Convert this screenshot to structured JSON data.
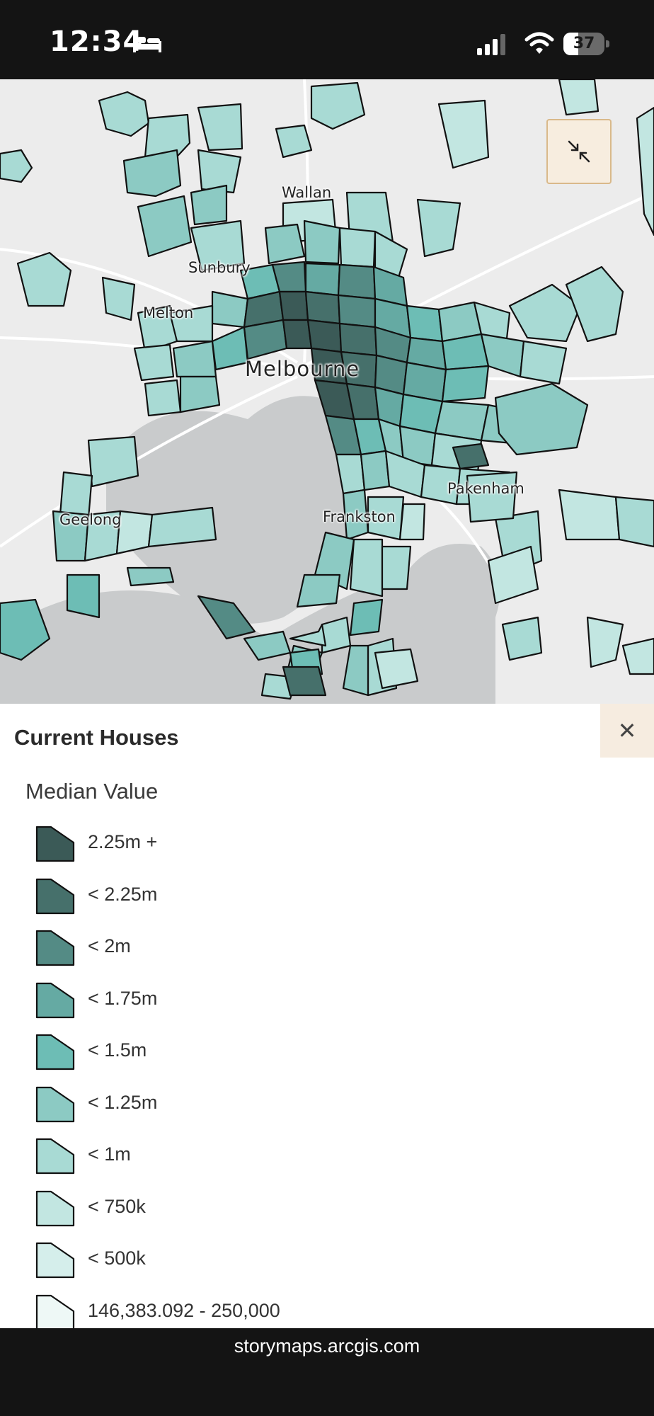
{
  "status_bar": {
    "time": "12:34",
    "battery_level": "37",
    "battery_fraction": 0.37,
    "icons": [
      "bed-icon",
      "signal-icon",
      "wifi-icon",
      "battery-icon"
    ]
  },
  "map": {
    "labels": {
      "wallan": "Wallan",
      "sunbury": "Sunbury",
      "melton": "Melton",
      "melbourne": "Melbourne",
      "pakenham": "Pakenham",
      "geelong": "Geelong",
      "frankston": "Frankston"
    },
    "collapse_icon": "collapse-arrows-icon",
    "colors": {
      "land": "#ececec",
      "water": "#c9cbcc",
      "road": "#ffffff",
      "outline": "#111111"
    }
  },
  "legend": {
    "title": "Current Houses",
    "close_icon": "close-icon",
    "subtitle": "Median Value",
    "items": [
      {
        "label": "2.25m +",
        "color": "#3b5a57"
      },
      {
        "label": "< 2.25m",
        "color": "#46706b"
      },
      {
        "label": "< 2m",
        "color": "#548b85"
      },
      {
        "label": "< 1.75m",
        "color": "#65aaa3"
      },
      {
        "label": "< 1.5m",
        "color": "#6dbdb5"
      },
      {
        "label": "< 1.25m",
        "color": "#8ccac3"
      },
      {
        "label": "< 1m",
        "color": "#a8dad4"
      },
      {
        "label": "< 750k",
        "color": "#c2e6e1"
      },
      {
        "label": "< 500k",
        "color": "#d5eeeb"
      },
      {
        "label": "146,383.092 - 250,000",
        "color": "#eef8f6"
      }
    ]
  },
  "browser": {
    "url": "storymaps.arcgis.com"
  }
}
